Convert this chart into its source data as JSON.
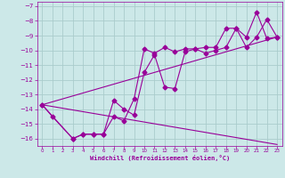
{
  "xlabel": "Windchill (Refroidissement éolien,°C)",
  "xlim": [
    -0.5,
    23.5
  ],
  "ylim": [
    -16.5,
    -6.7
  ],
  "yticks": [
    -7,
    -8,
    -9,
    -10,
    -11,
    -12,
    -13,
    -14,
    -15,
    -16
  ],
  "xticks": [
    0,
    1,
    2,
    3,
    4,
    5,
    6,
    7,
    8,
    9,
    10,
    11,
    12,
    13,
    14,
    15,
    16,
    17,
    18,
    19,
    20,
    21,
    22,
    23
  ],
  "bg_color": "#cce8e8",
  "grid_color": "#aacccc",
  "line_color": "#990099",
  "series1_x": [
    0,
    1,
    3,
    4,
    5,
    6,
    7,
    8,
    9,
    10,
    11,
    12,
    13,
    14,
    15,
    16,
    17,
    18,
    19,
    20,
    21,
    22,
    23
  ],
  "series1_y": [
    -13.7,
    -14.5,
    -16.0,
    -15.7,
    -15.7,
    -15.7,
    -14.5,
    -14.8,
    -13.3,
    -9.9,
    -10.2,
    -9.8,
    -10.1,
    -9.9,
    -9.9,
    -9.8,
    -9.8,
    -8.5,
    -8.5,
    -9.1,
    -7.4,
    -9.2,
    -9.1
  ],
  "series2_x": [
    0,
    3,
    4,
    5,
    6,
    7,
    8,
    9,
    10,
    11,
    12,
    13,
    14,
    15,
    16,
    17,
    18,
    19,
    20,
    21,
    22,
    23
  ],
  "series2_y": [
    -13.7,
    -16.0,
    -15.7,
    -15.7,
    -15.7,
    -13.4,
    -14.0,
    -14.4,
    -11.5,
    -10.3,
    -12.5,
    -12.6,
    -10.1,
    -9.9,
    -10.2,
    -10.0,
    -9.8,
    -8.5,
    -9.8,
    -9.1,
    -7.9,
    -9.1
  ],
  "series3_x": [
    0,
    23
  ],
  "series3_y": [
    -13.7,
    -9.1
  ],
  "series4_x": [
    0,
    23
  ],
  "series4_y": [
    -13.7,
    -16.4
  ],
  "marker": "D",
  "markersize": 2.5,
  "linewidth": 0.8
}
